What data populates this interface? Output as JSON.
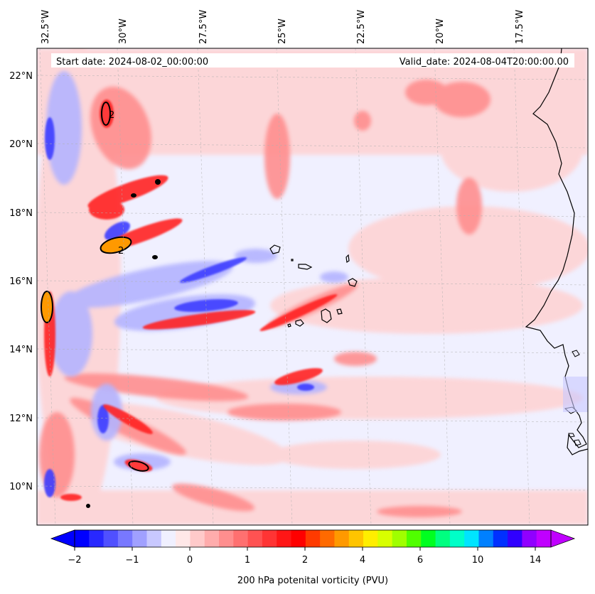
{
  "map": {
    "start_label": "Start date: 2024-08-02_00:00:00",
    "valid_label": "Valid_date: 2024-08-04T20:00:00.00",
    "lon_labels": [
      "32.5°W",
      "30°W",
      "27.5°W",
      "25°W",
      "22.5°W",
      "20°W",
      "17.5°W"
    ],
    "lat_labels": [
      "22°N",
      "20°N",
      "18°N",
      "16°N",
      "14°N",
      "12°N",
      "10°N"
    ],
    "contour_label": "2"
  },
  "colorbar": {
    "title": "200 hPa potenital vorticity (PVU)",
    "tick_labels": [
      "−2",
      "−1",
      "0",
      "1",
      "2",
      "4",
      "6",
      "10",
      "14"
    ],
    "colors": [
      "#0000ff",
      "#2828ff",
      "#5050ff",
      "#7878ff",
      "#a0a0ff",
      "#c8c8ff",
      "#f0f0ff",
      "#ffe8e8",
      "#ffcaca",
      "#ffacac",
      "#ff8e8e",
      "#ff7070",
      "#ff5252",
      "#ff3434",
      "#ff1616",
      "#ff0000",
      "#ff3a00",
      "#ff6a00",
      "#ff9900",
      "#ffc400",
      "#ffee00",
      "#d8ff00",
      "#a0ff00",
      "#50ff00",
      "#00ff20",
      "#00ff80",
      "#00ffc8",
      "#00e4ff",
      "#0080ff",
      "#0030ff",
      "#3000ff",
      "#9000ff",
      "#c000ff"
    ]
  },
  "colors": {
    "neutral": "#f0f0ff",
    "positive": "#ff3a3a",
    "negative": "#3c3cff",
    "coastline": "#000000"
  }
}
